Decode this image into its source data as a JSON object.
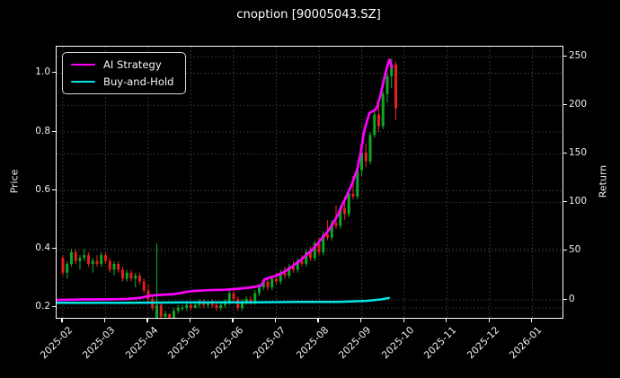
{
  "chart_data": {
    "type": "candlestick+line",
    "title": "cnoption [90005043.SZ]",
    "grid": true,
    "background": "#000000",
    "x_axis": {
      "tick_labels": [
        "2025-02",
        "2025-03",
        "2025-04",
        "2025-05",
        "2025-06",
        "2025-07",
        "2025-08",
        "2025-09",
        "2025-10",
        "2025-11",
        "2025-12",
        "2026-01"
      ],
      "label_rotation_deg": 45,
      "min": -0.147,
      "max": 11.705
    },
    "price_axis": {
      "label": "Price",
      "side": "left",
      "ticks": [
        0.2,
        0.4,
        0.6,
        0.8,
        1.0
      ],
      "tick_labels": [
        "0.2",
        "0.4",
        "0.6",
        "0.8",
        "1.0"
      ],
      "min": 0.166,
      "max": 1.091
    },
    "return_axis": {
      "label": "Return",
      "side": "right",
      "ticks": [
        0,
        50,
        100,
        150,
        200,
        250
      ],
      "tick_labels": [
        "0",
        "50",
        "100",
        "150",
        "200",
        "250"
      ],
      "min": -18.4,
      "max": 260.2
    },
    "legend": {
      "position": "upper-left",
      "items": [
        {
          "label": "AI Strategy",
          "color": "#ff00ff"
        },
        {
          "label": "Buy-and-Hold",
          "color": "#00e5e5"
        }
      ]
    },
    "candles": {
      "color_up": "#0fa722",
      "color_down": "#e41f1f",
      "x_start": 0,
      "x_end": 7.8,
      "ohlc": [
        [
          0.37,
          0.38,
          0.31,
          0.32
        ],
        [
          0.32,
          0.36,
          0.3,
          0.35
        ],
        [
          0.35,
          0.4,
          0.34,
          0.39
        ],
        [
          0.39,
          0.4,
          0.35,
          0.36
        ],
        [
          0.36,
          0.38,
          0.33,
          0.37
        ],
        [
          0.37,
          0.4,
          0.36,
          0.38
        ],
        [
          0.38,
          0.39,
          0.34,
          0.35
        ],
        [
          0.35,
          0.37,
          0.32,
          0.36
        ],
        [
          0.36,
          0.38,
          0.34,
          0.35
        ],
        [
          0.35,
          0.39,
          0.34,
          0.38
        ],
        [
          0.38,
          0.39,
          0.35,
          0.36
        ],
        [
          0.36,
          0.37,
          0.32,
          0.33
        ],
        [
          0.33,
          0.36,
          0.31,
          0.35
        ],
        [
          0.35,
          0.36,
          0.32,
          0.33
        ],
        [
          0.33,
          0.34,
          0.29,
          0.3
        ],
        [
          0.3,
          0.33,
          0.29,
          0.32
        ],
        [
          0.32,
          0.33,
          0.29,
          0.3
        ],
        [
          0.3,
          0.32,
          0.27,
          0.31
        ],
        [
          0.31,
          0.32,
          0.28,
          0.29
        ],
        [
          0.29,
          0.3,
          0.25,
          0.26
        ],
        [
          0.26,
          0.28,
          0.22,
          0.23
        ],
        [
          0.23,
          0.24,
          0.19,
          0.2
        ],
        [
          0.15,
          0.42,
          0.13,
          0.21
        ],
        [
          0.21,
          0.22,
          0.16,
          0.17
        ],
        [
          0.17,
          0.19,
          0.15,
          0.18
        ],
        [
          0.18,
          0.18,
          0.15,
          0.16
        ],
        [
          0.16,
          0.2,
          0.16,
          0.19
        ],
        [
          0.19,
          0.21,
          0.18,
          0.2
        ],
        [
          0.2,
          0.21,
          0.19,
          0.2
        ],
        [
          0.2,
          0.22,
          0.19,
          0.21
        ],
        [
          0.21,
          0.22,
          0.19,
          0.2
        ],
        [
          0.2,
          0.22,
          0.2,
          0.21
        ],
        [
          0.21,
          0.23,
          0.2,
          0.22
        ],
        [
          0.22,
          0.23,
          0.2,
          0.21
        ],
        [
          0.21,
          0.22,
          0.2,
          0.22
        ],
        [
          0.22,
          0.23,
          0.2,
          0.21
        ],
        [
          0.21,
          0.22,
          0.19,
          0.2
        ],
        [
          0.2,
          0.22,
          0.19,
          0.21
        ],
        [
          0.21,
          0.23,
          0.2,
          0.22
        ],
        [
          0.22,
          0.26,
          0.21,
          0.25
        ],
        [
          0.25,
          0.26,
          0.22,
          0.23
        ],
        [
          0.23,
          0.24,
          0.19,
          0.2
        ],
        [
          0.2,
          0.23,
          0.19,
          0.22
        ],
        [
          0.22,
          0.24,
          0.21,
          0.23
        ],
        [
          0.23,
          0.24,
          0.21,
          0.22
        ],
        [
          0.22,
          0.26,
          0.21,
          0.25
        ],
        [
          0.25,
          0.28,
          0.24,
          0.27
        ],
        [
          0.27,
          0.3,
          0.26,
          0.29
        ],
        [
          0.29,
          0.3,
          0.26,
          0.27
        ],
        [
          0.27,
          0.31,
          0.26,
          0.3
        ],
        [
          0.3,
          0.32,
          0.28,
          0.29
        ],
        [
          0.29,
          0.33,
          0.28,
          0.32
        ],
        [
          0.32,
          0.34,
          0.3,
          0.31
        ],
        [
          0.31,
          0.35,
          0.3,
          0.34
        ],
        [
          0.34,
          0.36,
          0.32,
          0.33
        ],
        [
          0.33,
          0.37,
          0.32,
          0.36
        ],
        [
          0.36,
          0.38,
          0.34,
          0.35
        ],
        [
          0.35,
          0.4,
          0.34,
          0.39
        ],
        [
          0.39,
          0.41,
          0.36,
          0.37
        ],
        [
          0.37,
          0.43,
          0.36,
          0.42
        ],
        [
          0.42,
          0.44,
          0.38,
          0.39
        ],
        [
          0.39,
          0.46,
          0.38,
          0.45
        ],
        [
          0.45,
          0.5,
          0.43,
          0.44
        ],
        [
          0.44,
          0.5,
          0.43,
          0.49
        ],
        [
          0.49,
          0.55,
          0.47,
          0.48
        ],
        [
          0.48,
          0.55,
          0.47,
          0.54
        ],
        [
          0.54,
          0.58,
          0.5,
          0.52
        ],
        [
          0.52,
          0.6,
          0.51,
          0.59
        ],
        [
          0.59,
          0.65,
          0.57,
          0.58
        ],
        [
          0.58,
          0.68,
          0.57,
          0.67
        ],
        [
          0.67,
          0.74,
          0.65,
          0.73
        ],
        [
          0.73,
          0.76,
          0.68,
          0.7
        ],
        [
          0.7,
          0.8,
          0.69,
          0.79
        ],
        [
          0.79,
          0.88,
          0.78,
          0.86
        ],
        [
          0.86,
          0.9,
          0.8,
          0.82
        ],
        [
          0.82,
          0.94,
          0.81,
          0.93
        ],
        [
          0.93,
          1.0,
          0.9,
          0.99
        ],
        [
          0.99,
          1.05,
          0.95,
          1.03
        ],
        [
          1.03,
          1.04,
          0.84,
          0.88
        ]
      ]
    },
    "series": [
      {
        "name": "AI Strategy",
        "color": "#ff00ff",
        "axis": "return",
        "width": 2.7,
        "points": [
          [
            -0.15,
            0
          ],
          [
            0.5,
            0.5
          ],
          [
            1.0,
            0.5
          ],
          [
            1.5,
            1
          ],
          [
            1.8,
            2
          ],
          [
            2.0,
            4
          ],
          [
            2.2,
            5
          ],
          [
            2.6,
            6
          ],
          [
            3.0,
            9
          ],
          [
            3.4,
            10
          ],
          [
            3.8,
            10.5
          ],
          [
            4.1,
            11.5
          ],
          [
            4.35,
            12.5
          ],
          [
            4.55,
            14
          ],
          [
            4.65,
            15
          ],
          [
            4.72,
            21
          ],
          [
            4.85,
            23
          ],
          [
            5.0,
            25
          ],
          [
            5.15,
            28
          ],
          [
            5.3,
            32
          ],
          [
            5.45,
            37
          ],
          [
            5.6,
            42
          ],
          [
            5.72,
            47
          ],
          [
            5.85,
            52
          ],
          [
            5.95,
            57
          ],
          [
            6.08,
            64
          ],
          [
            6.2,
            70
          ],
          [
            6.32,
            78
          ],
          [
            6.45,
            88
          ],
          [
            6.55,
            98
          ],
          [
            6.65,
            107
          ],
          [
            6.78,
            120
          ],
          [
            6.9,
            135
          ],
          [
            6.98,
            152
          ],
          [
            7.05,
            172
          ],
          [
            7.12,
            183
          ],
          [
            7.18,
            192
          ],
          [
            7.26,
            194
          ],
          [
            7.34,
            196
          ],
          [
            7.44,
            210
          ],
          [
            7.52,
            226
          ],
          [
            7.6,
            240
          ],
          [
            7.65,
            247
          ],
          [
            7.71,
            239
          ]
        ]
      },
      {
        "name": "Buy-and-Hold",
        "color": "#00e5e5",
        "axis": "return",
        "width": 2.5,
        "points": [
          [
            -0.15,
            -3
          ],
          [
            1.5,
            -3
          ],
          [
            3.0,
            -2.5
          ],
          [
            4.5,
            -2.5
          ],
          [
            5.5,
            -2
          ],
          [
            6.5,
            -2
          ],
          [
            7.1,
            -1
          ],
          [
            7.45,
            0.5
          ],
          [
            7.64,
            2
          ]
        ]
      }
    ]
  }
}
